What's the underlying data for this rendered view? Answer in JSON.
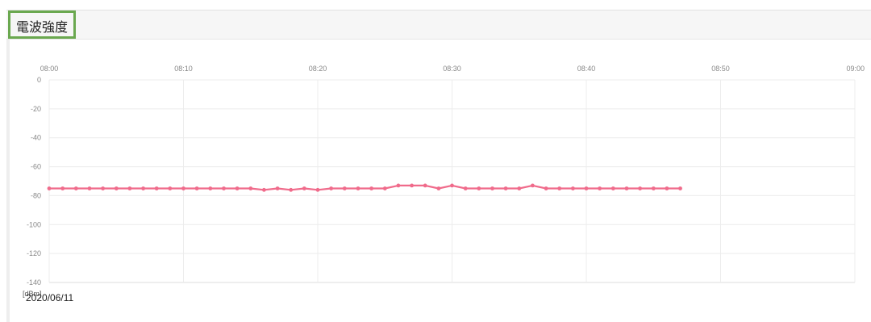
{
  "panel": {
    "title": "電波強度",
    "date": "2020/06/11"
  },
  "chart_data": {
    "type": "line",
    "ylabel": "[dBm]",
    "x_ticks": [
      "08:00",
      "08:10",
      "08:20",
      "08:30",
      "08:40",
      "08:50",
      "09:00"
    ],
    "y_ticks": [
      0,
      -20,
      -40,
      -60,
      -80,
      -100,
      -120,
      -140
    ],
    "xlim": [
      "08:00",
      "09:00"
    ],
    "ylim": [
      -140,
      0
    ],
    "grid": true,
    "line_color": "#f06b8b",
    "series": [
      {
        "x": [
          "08:00",
          "08:01",
          "08:02",
          "08:03",
          "08:04",
          "08:05",
          "08:06",
          "08:07",
          "08:08",
          "08:09",
          "08:10",
          "08:11",
          "08:12",
          "08:13",
          "08:14",
          "08:15",
          "08:16",
          "08:17",
          "08:18",
          "08:19",
          "08:20",
          "08:21",
          "08:22",
          "08:23",
          "08:24",
          "08:25",
          "08:26",
          "08:27",
          "08:28",
          "08:29",
          "08:30",
          "08:31",
          "08:32",
          "08:33",
          "08:34",
          "08:35",
          "08:36",
          "08:37",
          "08:38",
          "08:39",
          "08:40",
          "08:41",
          "08:42",
          "08:43",
          "08:44",
          "08:45",
          "08:46",
          "08:47"
        ],
        "values": [
          -75,
          -75,
          -75,
          -75,
          -75,
          -75,
          -75,
          -75,
          -75,
          -75,
          -75,
          -75,
          -75,
          -75,
          -75,
          -75,
          -76,
          -75,
          -76,
          -75,
          -76,
          -75,
          -75,
          -75,
          -75,
          -75,
          -73,
          -73,
          -73,
          -75,
          -73,
          -75,
          -75,
          -75,
          -75,
          -75,
          -73,
          -75,
          -75,
          -75,
          -75,
          -75,
          -75,
          -75,
          -75,
          -75,
          -75,
          -75
        ]
      }
    ]
  }
}
